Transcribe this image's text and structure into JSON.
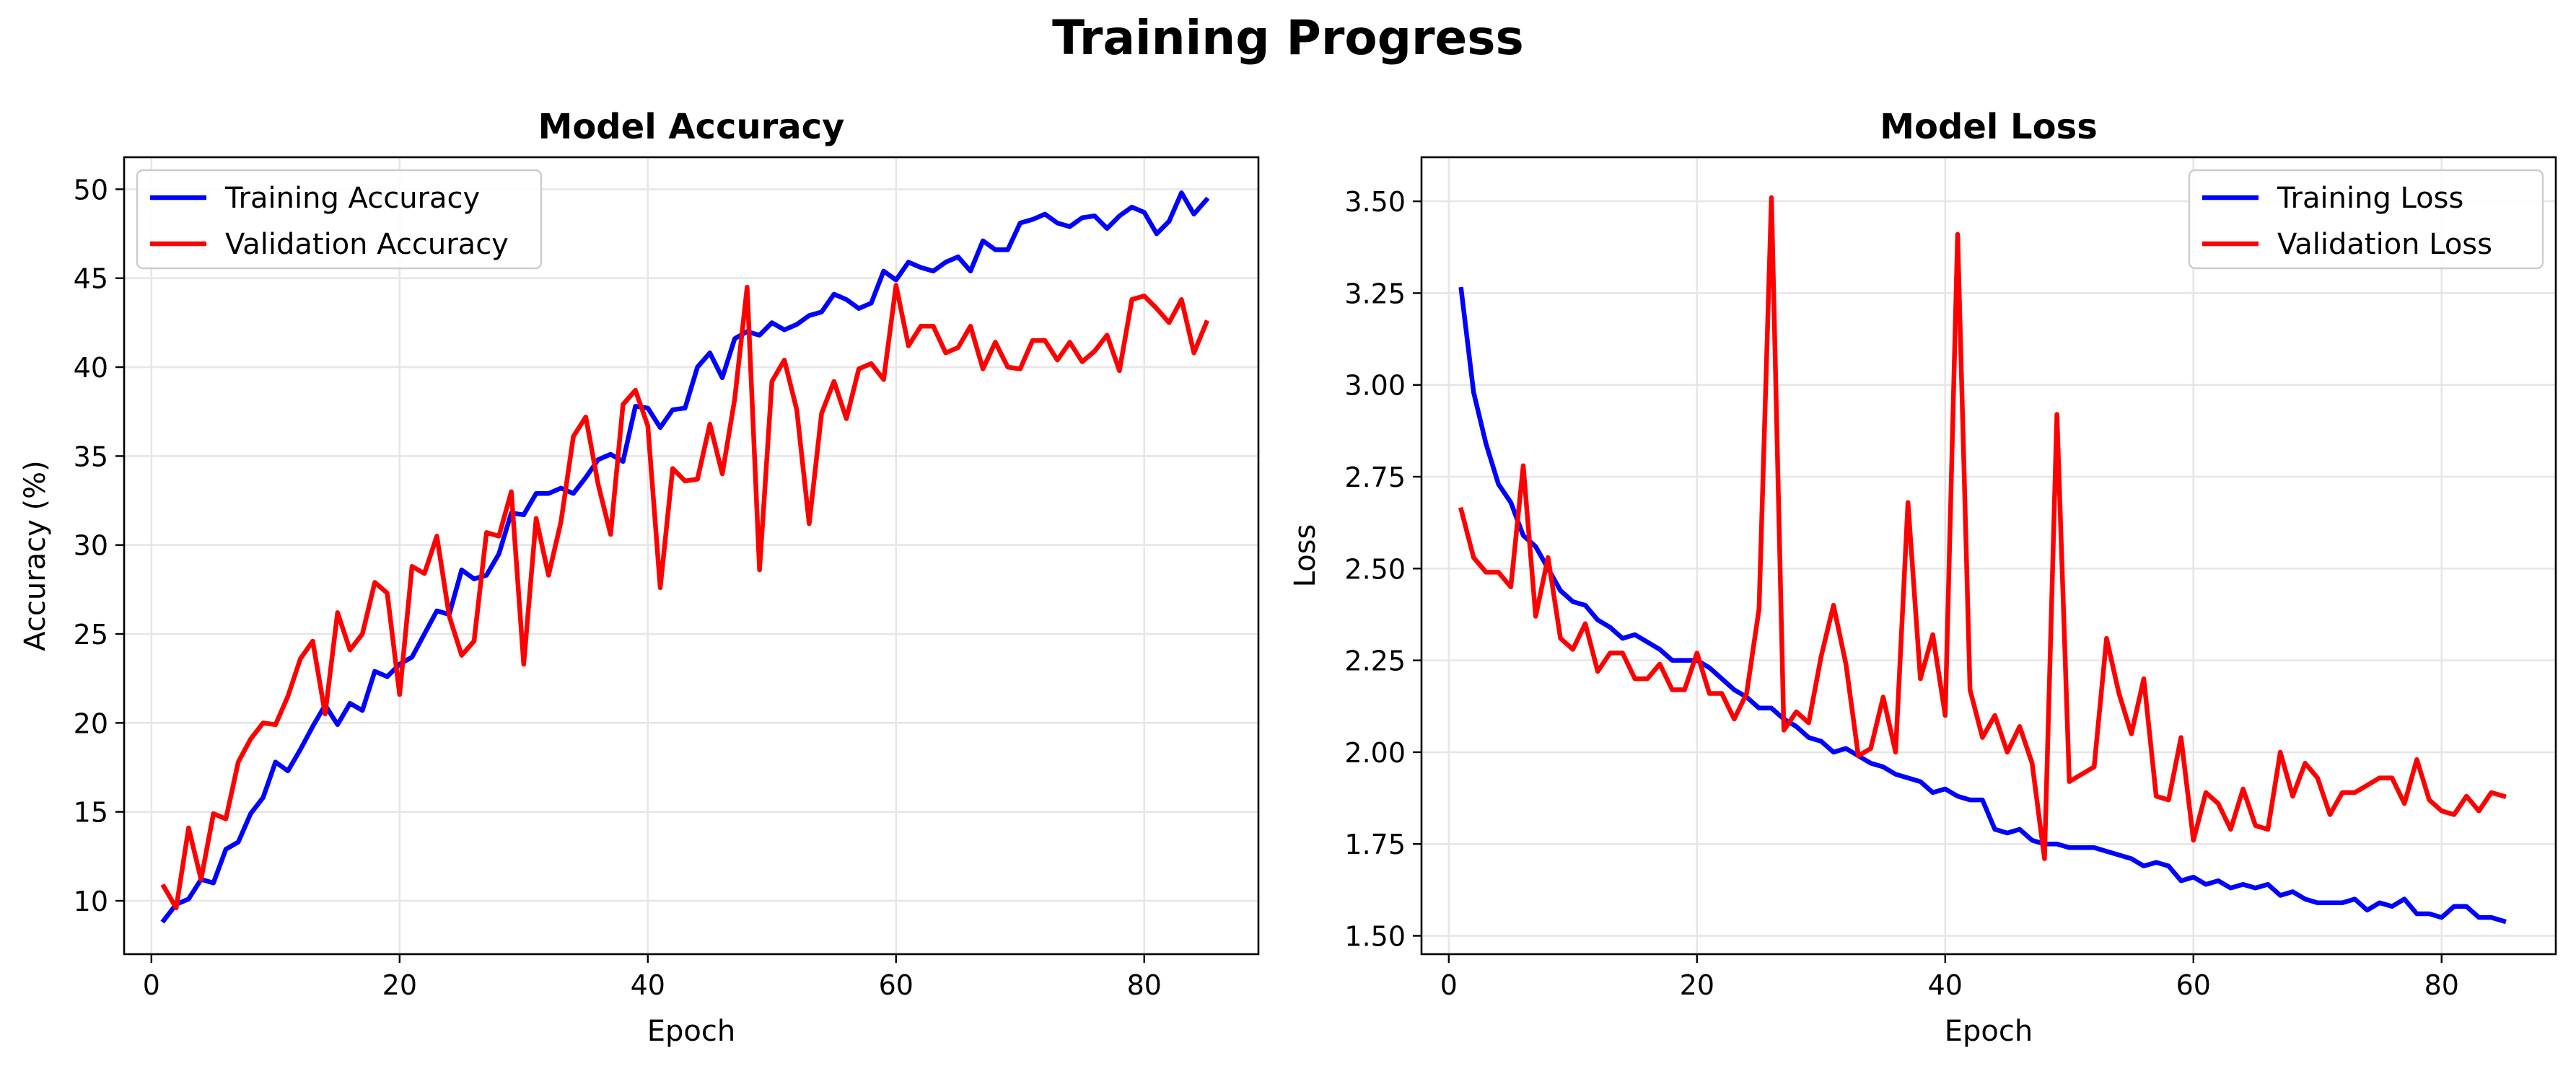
{
  "suptitle": "Training Progress",
  "chart_data": [
    {
      "type": "line",
      "title": "Model Accuracy",
      "xlabel": "Epoch",
      "ylabel": "Accuracy (%)",
      "xlim": [
        -2.2,
        89.2
      ],
      "ylim": [
        7.0,
        51.8
      ],
      "xticks": [
        0,
        20,
        40,
        60,
        80
      ],
      "yticks": [
        10,
        15,
        20,
        25,
        30,
        35,
        40,
        45,
        50
      ],
      "ytick_decimals": 0,
      "grid": true,
      "legend": "upper left",
      "x": [
        1,
        2,
        3,
        4,
        5,
        6,
        7,
        8,
        9,
        10,
        11,
        12,
        13,
        14,
        15,
        16,
        17,
        18,
        19,
        20,
        21,
        22,
        23,
        24,
        25,
        26,
        27,
        28,
        29,
        30,
        31,
        32,
        33,
        34,
        35,
        36,
        37,
        38,
        39,
        40,
        41,
        42,
        43,
        44,
        45,
        46,
        47,
        48,
        49,
        50,
        51,
        52,
        53,
        54,
        55,
        56,
        57,
        58,
        59,
        60,
        61,
        62,
        63,
        64,
        65,
        66,
        67,
        68,
        69,
        70,
        71,
        72,
        73,
        74,
        75,
        76,
        77,
        78,
        79,
        80,
        81,
        82,
        83,
        84,
        85
      ],
      "series": [
        {
          "name": "Training Accuracy",
          "color": "#0000ff",
          "values": [
            8.9,
            9.8,
            10.1,
            11.2,
            11.0,
            12.9,
            13.3,
            14.9,
            15.8,
            17.8,
            17.3,
            18.5,
            19.8,
            21.0,
            19.9,
            21.1,
            20.7,
            22.9,
            22.6,
            23.3,
            23.7,
            25.0,
            26.3,
            26.1,
            28.6,
            28.1,
            28.3,
            29.5,
            31.8,
            31.7,
            32.9,
            32.9,
            33.2,
            32.9,
            33.8,
            34.8,
            35.1,
            34.7,
            37.8,
            37.7,
            36.6,
            37.6,
            37.7,
            40.0,
            40.8,
            39.4,
            41.6,
            42.0,
            41.8,
            42.5,
            42.1,
            42.4,
            42.9,
            43.1,
            44.1,
            43.8,
            43.3,
            43.6,
            45.4,
            44.9,
            45.9,
            45.6,
            45.4,
            45.9,
            46.2,
            45.4,
            47.1,
            46.6,
            46.6,
            48.1,
            48.3,
            48.6,
            48.1,
            47.9,
            48.4,
            48.5,
            47.8,
            48.5,
            49.0,
            48.7,
            47.5,
            48.2,
            49.8,
            48.6,
            49.4
          ]
        },
        {
          "name": "Validation Accuracy",
          "color": "#ff0000",
          "values": [
            10.8,
            9.6,
            14.1,
            11.2,
            14.9,
            14.6,
            17.8,
            19.1,
            20.0,
            19.9,
            21.5,
            23.6,
            24.6,
            20.5,
            26.2,
            24.1,
            25.0,
            27.9,
            27.3,
            21.6,
            28.8,
            28.4,
            30.5,
            26.0,
            23.8,
            24.6,
            30.7,
            30.5,
            33.0,
            23.3,
            31.5,
            28.3,
            31.3,
            36.1,
            37.2,
            33.4,
            30.6,
            37.9,
            38.7,
            36.7,
            27.6,
            34.3,
            33.6,
            33.7,
            36.8,
            34.0,
            38.2,
            44.5,
            28.6,
            39.2,
            40.4,
            37.6,
            31.2,
            37.4,
            39.2,
            37.1,
            39.9,
            40.2,
            39.3,
            44.6,
            41.2,
            42.3,
            42.3,
            40.8,
            41.1,
            42.3,
            39.9,
            41.4,
            40.0,
            39.9,
            41.5,
            41.5,
            40.4,
            41.4,
            40.3,
            40.9,
            41.8,
            39.8,
            43.8,
            44.0,
            43.3,
            42.5,
            43.8,
            40.8,
            42.5
          ]
        }
      ]
    },
    {
      "type": "line",
      "title": "Model Loss",
      "xlabel": "Epoch",
      "ylabel": "Loss",
      "xlim": [
        -2.2,
        89.2
      ],
      "ylim": [
        1.45,
        3.62
      ],
      "xticks": [
        0,
        20,
        40,
        60,
        80
      ],
      "yticks": [
        1.5,
        1.75,
        2.0,
        2.25,
        2.5,
        2.75,
        3.0,
        3.25,
        3.5
      ],
      "ytick_decimals": 2,
      "grid": true,
      "legend": "upper right",
      "x": [
        1,
        2,
        3,
        4,
        5,
        6,
        7,
        8,
        9,
        10,
        11,
        12,
        13,
        14,
        15,
        16,
        17,
        18,
        19,
        20,
        21,
        22,
        23,
        24,
        25,
        26,
        27,
        28,
        29,
        30,
        31,
        32,
        33,
        34,
        35,
        36,
        37,
        38,
        39,
        40,
        41,
        42,
        43,
        44,
        45,
        46,
        47,
        48,
        49,
        50,
        51,
        52,
        53,
        54,
        55,
        56,
        57,
        58,
        59,
        60,
        61,
        62,
        63,
        64,
        65,
        66,
        67,
        68,
        69,
        70,
        71,
        72,
        73,
        74,
        75,
        76,
        77,
        78,
        79,
        80,
        81,
        82,
        83,
        84,
        85
      ],
      "series": [
        {
          "name": "Training Loss",
          "color": "#0000ff",
          "values": [
            3.26,
            2.98,
            2.84,
            2.73,
            2.68,
            2.59,
            2.56,
            2.5,
            2.44,
            2.41,
            2.4,
            2.36,
            2.34,
            2.31,
            2.32,
            2.3,
            2.28,
            2.25,
            2.25,
            2.25,
            2.23,
            2.2,
            2.17,
            2.15,
            2.12,
            2.12,
            2.09,
            2.07,
            2.04,
            2.03,
            2.0,
            2.01,
            1.99,
            1.97,
            1.96,
            1.94,
            1.93,
            1.92,
            1.89,
            1.9,
            1.88,
            1.87,
            1.87,
            1.79,
            1.78,
            1.79,
            1.76,
            1.75,
            1.75,
            1.74,
            1.74,
            1.74,
            1.73,
            1.72,
            1.71,
            1.69,
            1.7,
            1.69,
            1.65,
            1.66,
            1.64,
            1.65,
            1.63,
            1.64,
            1.63,
            1.64,
            1.61,
            1.62,
            1.6,
            1.59,
            1.59,
            1.59,
            1.6,
            1.57,
            1.59,
            1.58,
            1.6,
            1.56,
            1.56,
            1.55,
            1.58,
            1.58,
            1.55,
            1.55,
            1.54
          ]
        },
        {
          "name": "Validation Loss",
          "color": "#ff0000",
          "values": [
            2.66,
            2.53,
            2.49,
            2.49,
            2.45,
            2.78,
            2.37,
            2.53,
            2.31,
            2.28,
            2.35,
            2.22,
            2.27,
            2.27,
            2.2,
            2.2,
            2.24,
            2.17,
            2.17,
            2.27,
            2.16,
            2.16,
            2.09,
            2.16,
            2.39,
            3.51,
            2.06,
            2.11,
            2.08,
            2.26,
            2.4,
            2.24,
            1.99,
            2.01,
            2.15,
            2.0,
            2.68,
            2.2,
            2.32,
            2.1,
            3.41,
            2.17,
            2.04,
            2.1,
            2.0,
            2.07,
            1.97,
            1.71,
            2.92,
            1.92,
            1.94,
            1.96,
            2.31,
            2.16,
            2.05,
            2.2,
            1.88,
            1.87,
            2.04,
            1.76,
            1.89,
            1.86,
            1.79,
            1.9,
            1.8,
            1.79,
            2.0,
            1.88,
            1.97,
            1.93,
            1.83,
            1.89,
            1.89,
            1.91,
            1.93,
            1.93,
            1.86,
            1.98,
            1.87,
            1.84,
            1.83,
            1.88,
            1.84,
            1.89,
            1.88
          ]
        }
      ]
    }
  ]
}
